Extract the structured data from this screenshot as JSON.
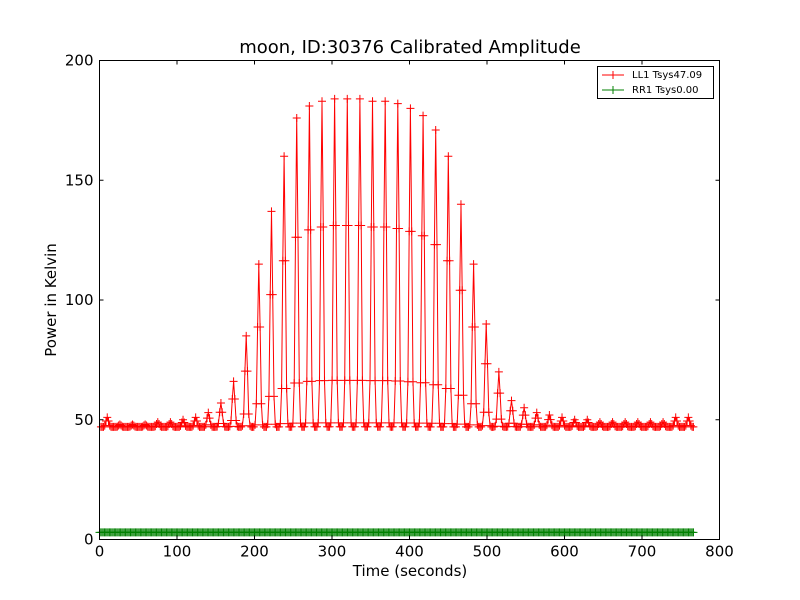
{
  "chart_data": {
    "type": "line",
    "title": "moon, ID:30376 Calibrated Amplitude",
    "xlabel": "Time (seconds)",
    "ylabel": "Power in Kelvin",
    "xlim": [
      0,
      800
    ],
    "ylim": [
      0,
      200
    ],
    "x_ticks": [
      "0",
      "100",
      "200",
      "300",
      "400",
      "500",
      "600",
      "700",
      "800"
    ],
    "y_ticks": [
      "0",
      "50",
      "100",
      "150",
      "200"
    ],
    "grid": false,
    "legend_position": "top-right",
    "marker": "+",
    "raster_scan": {
      "x_start": 0,
      "x_end": 768,
      "baseline": 48,
      "first_peak_x": 10,
      "peak_spacing": 16.3,
      "peaks": [
        51,
        48,
        48,
        48,
        49,
        49,
        50,
        51,
        53,
        57,
        66,
        85,
        115,
        137,
        160,
        176,
        181,
        183,
        184,
        184,
        184,
        183,
        183,
        182,
        180,
        177,
        171,
        160,
        140,
        115,
        90,
        70,
        58,
        55,
        53,
        52,
        51,
        50,
        50,
        49,
        49,
        49,
        49,
        49,
        49,
        51,
        51
      ],
      "valley": 47
    },
    "series": [
      {
        "name": "LL1 Tsys47.09",
        "color": "#ff0000"
      },
      {
        "name": "RR1 Tsys0.00",
        "color": "#008000",
        "constant_value": 3,
        "x_range": [
          0,
          768
        ]
      }
    ]
  }
}
